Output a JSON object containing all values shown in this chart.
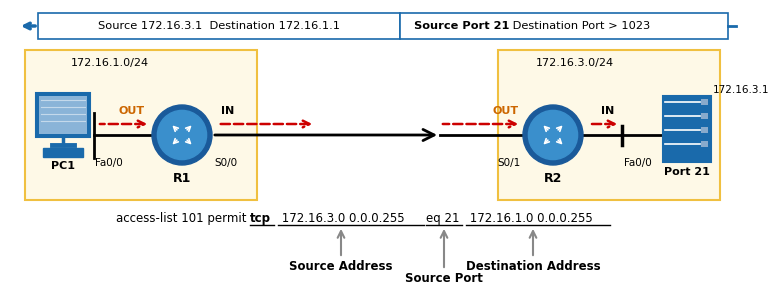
{
  "title_bar_left": "Source 172.16.3.1  Destination 172.16.1.1",
  "title_bar_right_bold": "Source Port 21",
  "title_bar_right_normal": " Destination Port > 1023",
  "subnet_left": "172.16.1.0/24",
  "subnet_right": "172.16.3.0/24",
  "server_ip": "172.16.3.1",
  "port_label": "Port 21",
  "acl_prefix": "access-list 101 permit ",
  "acl_tcp": "tcp",
  "acl_src_addr": " 172.16.3.0 0.0.0.255 ",
  "acl_eq21": "eq 21",
  "acl_dst_addr": " 172.16.1.0 0.0.0.255",
  "label_source_address": "Source Address",
  "label_source_port": "Source Port",
  "label_dest_address": "Destination Address",
  "yellow_bg": "#fef9e7",
  "yellow_border": "#f0c040",
  "blue_dark": "#1a5a9a",
  "blue_mid": "#3a8fcc",
  "blue_light": "#1a6aab",
  "red_arrow": "#cc0000",
  "pc_label": "PC1",
  "r1_label": "R1",
  "r2_label": "R2",
  "iface_fa00_left": "Fa0/0",
  "iface_s00": "S0/0",
  "iface_s01": "S0/1",
  "iface_fa00_right": "Fa0/0",
  "out_label": "OUT",
  "in_label": "IN"
}
